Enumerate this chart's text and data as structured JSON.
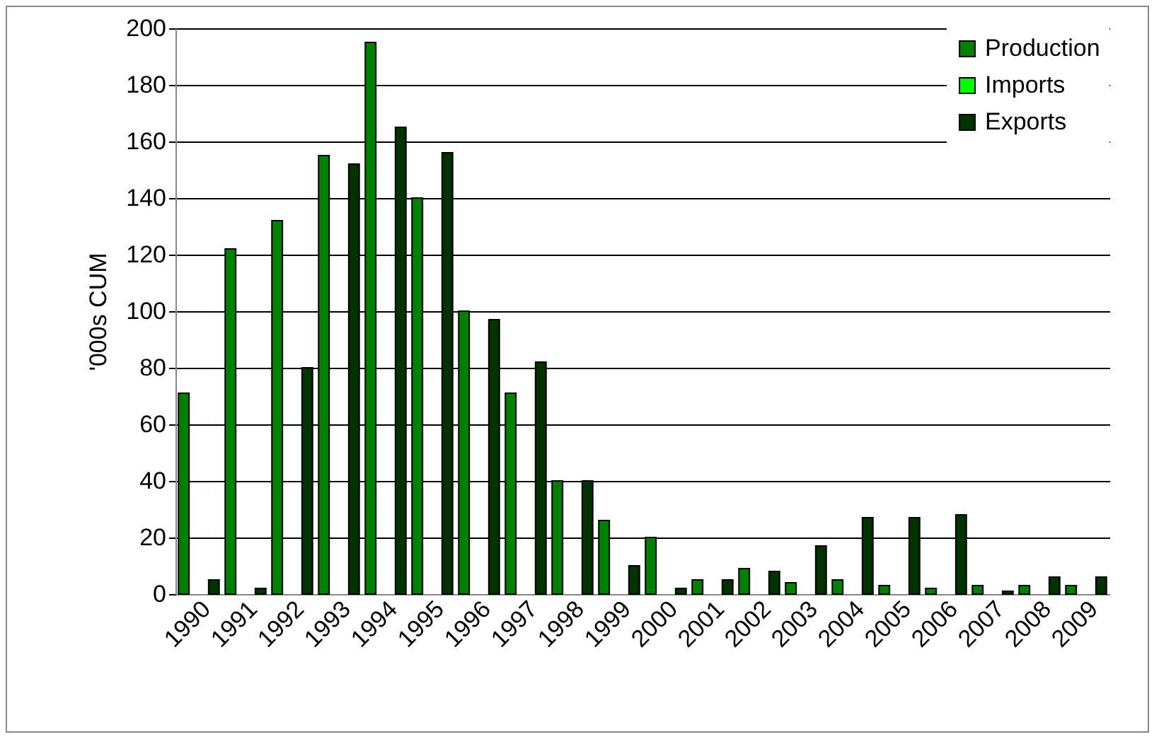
{
  "chart_data": {
    "type": "bar",
    "ylabel": "'000s CUM",
    "categories": [
      "1990",
      "1991",
      "1992",
      "1993",
      "1994",
      "1995",
      "1996",
      "1997",
      "1998",
      "1999",
      "2000",
      "2001",
      "2002",
      "2003",
      "2004",
      "2005",
      "2006",
      "2007",
      "2008",
      "2009"
    ],
    "series": [
      {
        "name": "Production",
        "color": "#008000",
        "values": [
          71,
          122,
          132,
          155,
          195,
          140,
          100,
          71,
          40,
          26,
          20,
          5,
          9,
          4,
          5,
          3,
          2,
          3,
          3,
          3
        ]
      },
      {
        "name": "Imports",
        "color": "#00ff00",
        "values": [
          null,
          null,
          null,
          null,
          null,
          null,
          null,
          null,
          null,
          null,
          null,
          null,
          null,
          null,
          null,
          null,
          null,
          null,
          null,
          null
        ]
      },
      {
        "name": "Exports",
        "color": "#003300",
        "values": [
          5,
          2,
          80,
          152,
          165,
          156,
          97,
          82,
          40,
          10,
          2,
          5,
          8,
          17,
          27,
          27,
          28,
          1,
          6,
          6
        ]
      }
    ],
    "ylim": [
      0,
      200
    ],
    "yticks": [
      0,
      20,
      40,
      60,
      80,
      100,
      120,
      140,
      160,
      180,
      200
    ],
    "grid": "y",
    "legend": "top right"
  }
}
